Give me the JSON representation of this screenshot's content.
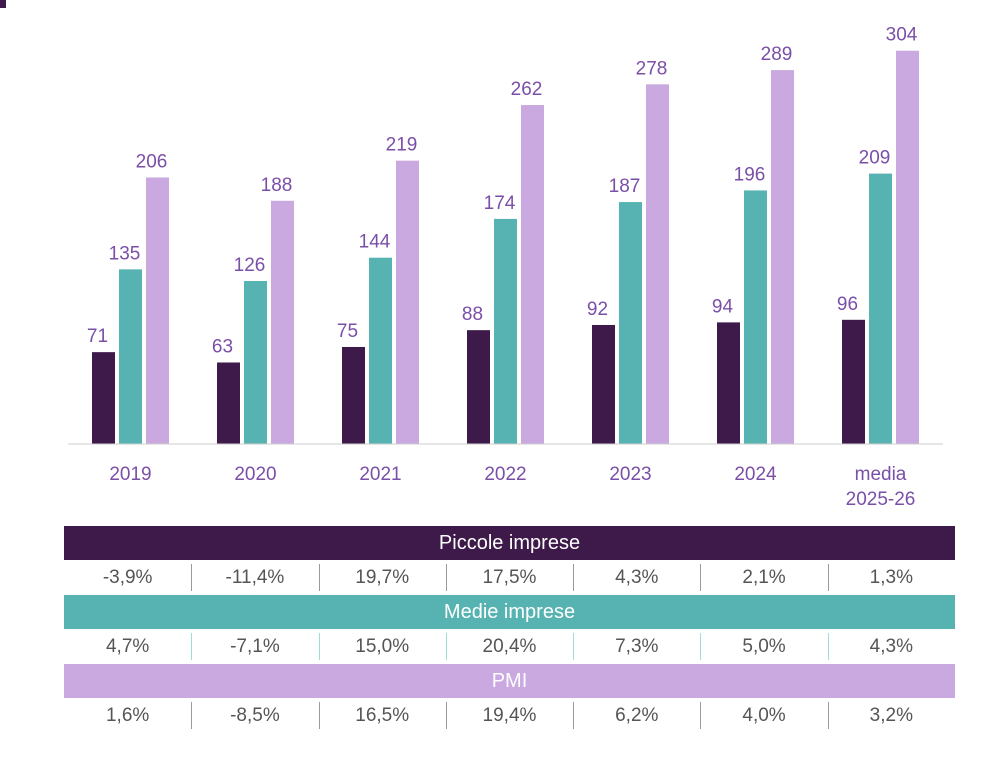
{
  "chart_data": {
    "type": "bar",
    "categories": [
      "2019",
      "2020",
      "2021",
      "2022",
      "2023",
      "2024",
      "media\n2025-26"
    ],
    "series": [
      {
        "values": [
          71,
          63,
          75,
          88,
          92,
          94,
          96
        ],
        "color": "#3d1a4a"
      },
      {
        "values": [
          135,
          126,
          144,
          174,
          187,
          196,
          209
        ],
        "color": "#57b3b1"
      },
      {
        "values": [
          206,
          188,
          219,
          262,
          278,
          289,
          304
        ],
        "color": "#c9a9e0"
      }
    ],
    "ylim": [
      0,
      320
    ],
    "grid": false,
    "legend": "none"
  },
  "tables": [
    {
      "title": "Piccole imprese",
      "color": "#3d1a4a",
      "values": [
        "-3,9%",
        "-11,4%",
        "19,7%",
        "17,5%",
        "4,3%",
        "2,1%",
        "1,3%"
      ]
    },
    {
      "title": "Medie imprese",
      "color": "#57b3b1",
      "values": [
        "4,7%",
        "-7,1%",
        "15,0%",
        "20,4%",
        "7,3%",
        "5,0%",
        "4,3%"
      ]
    },
    {
      "title": "PMI",
      "color": "#c9a9e0",
      "values": [
        "1,6%",
        "-8,5%",
        "16,5%",
        "19,4%",
        "6,2%",
        "4,0%",
        "3,2%"
      ]
    }
  ]
}
